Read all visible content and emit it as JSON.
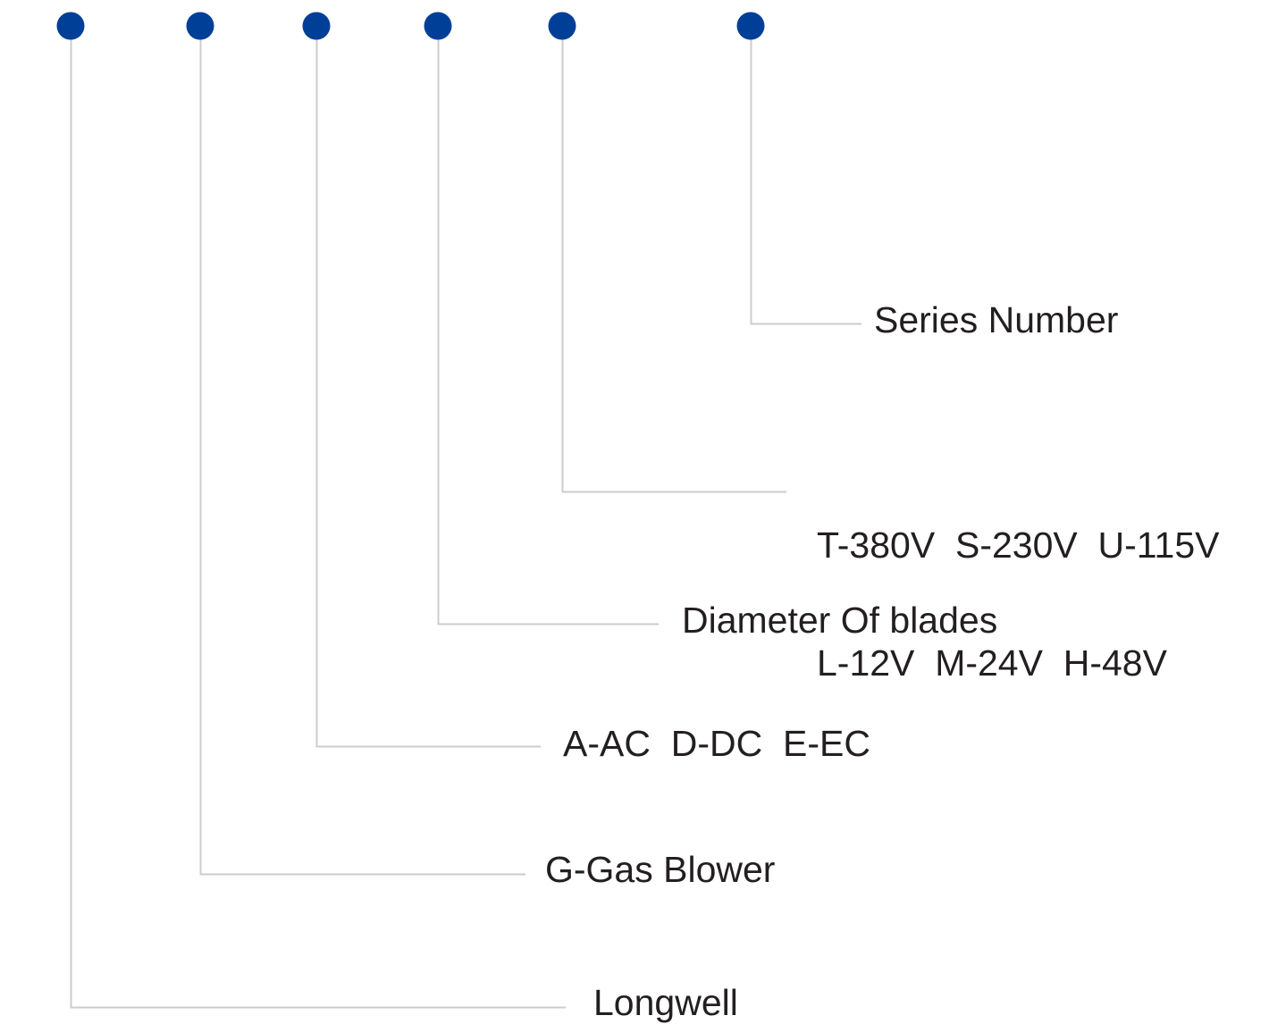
{
  "colors": {
    "dot": "#003f98",
    "connector": "#cccccc",
    "text": "#231f20",
    "background": "#ffffff"
  },
  "legend": {
    "series_number": "Series Number",
    "voltage_line_1": "T-380V  S-230V  U-115V",
    "voltage_line_2": "L-12V  M-24V  H-48V",
    "diameter": "Diameter Of blades",
    "current_type": "A-AC  D-DC  E-EC",
    "product_type": "G-Gas Blower",
    "brand": "Longwell"
  }
}
